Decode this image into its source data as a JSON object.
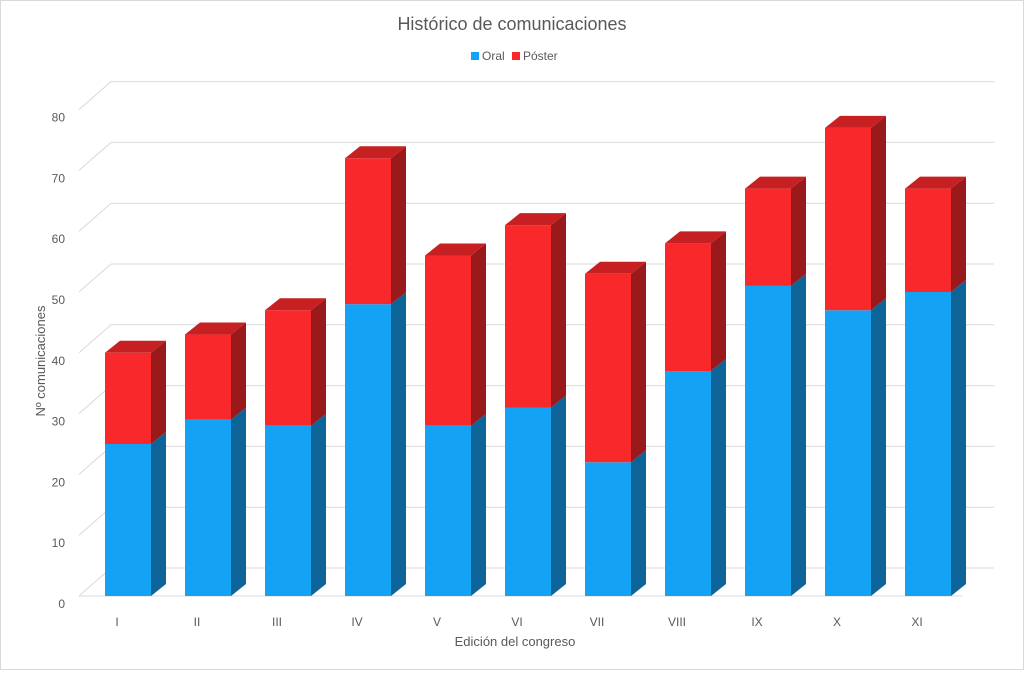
{
  "chart_data": {
    "type": "bar",
    "stacked": true,
    "three_d": true,
    "title": "Histórico de comunicaciones",
    "xlabel": "Edición del congreso",
    "ylabel": "Nº comunicaciones",
    "categories": [
      "I",
      "II",
      "III",
      "IV",
      "V",
      "VI",
      "VII",
      "VIII",
      "IX",
      "X",
      "XI"
    ],
    "series": [
      {
        "name": "Oral",
        "color": "#14a2f5",
        "values": [
          25,
          29,
          28,
          48,
          28,
          31,
          22,
          37,
          51,
          47,
          50
        ]
      },
      {
        "name": "Póster",
        "color": "#f9282b",
        "values": [
          15,
          14,
          19,
          24,
          28,
          30,
          31,
          21,
          16,
          30,
          17
        ]
      }
    ],
    "ylim": [
      0,
      80
    ],
    "yticks": [
      0,
      10,
      20,
      30,
      40,
      50,
      60,
      70,
      80
    ],
    "grid": true,
    "legend_position": "top"
  }
}
